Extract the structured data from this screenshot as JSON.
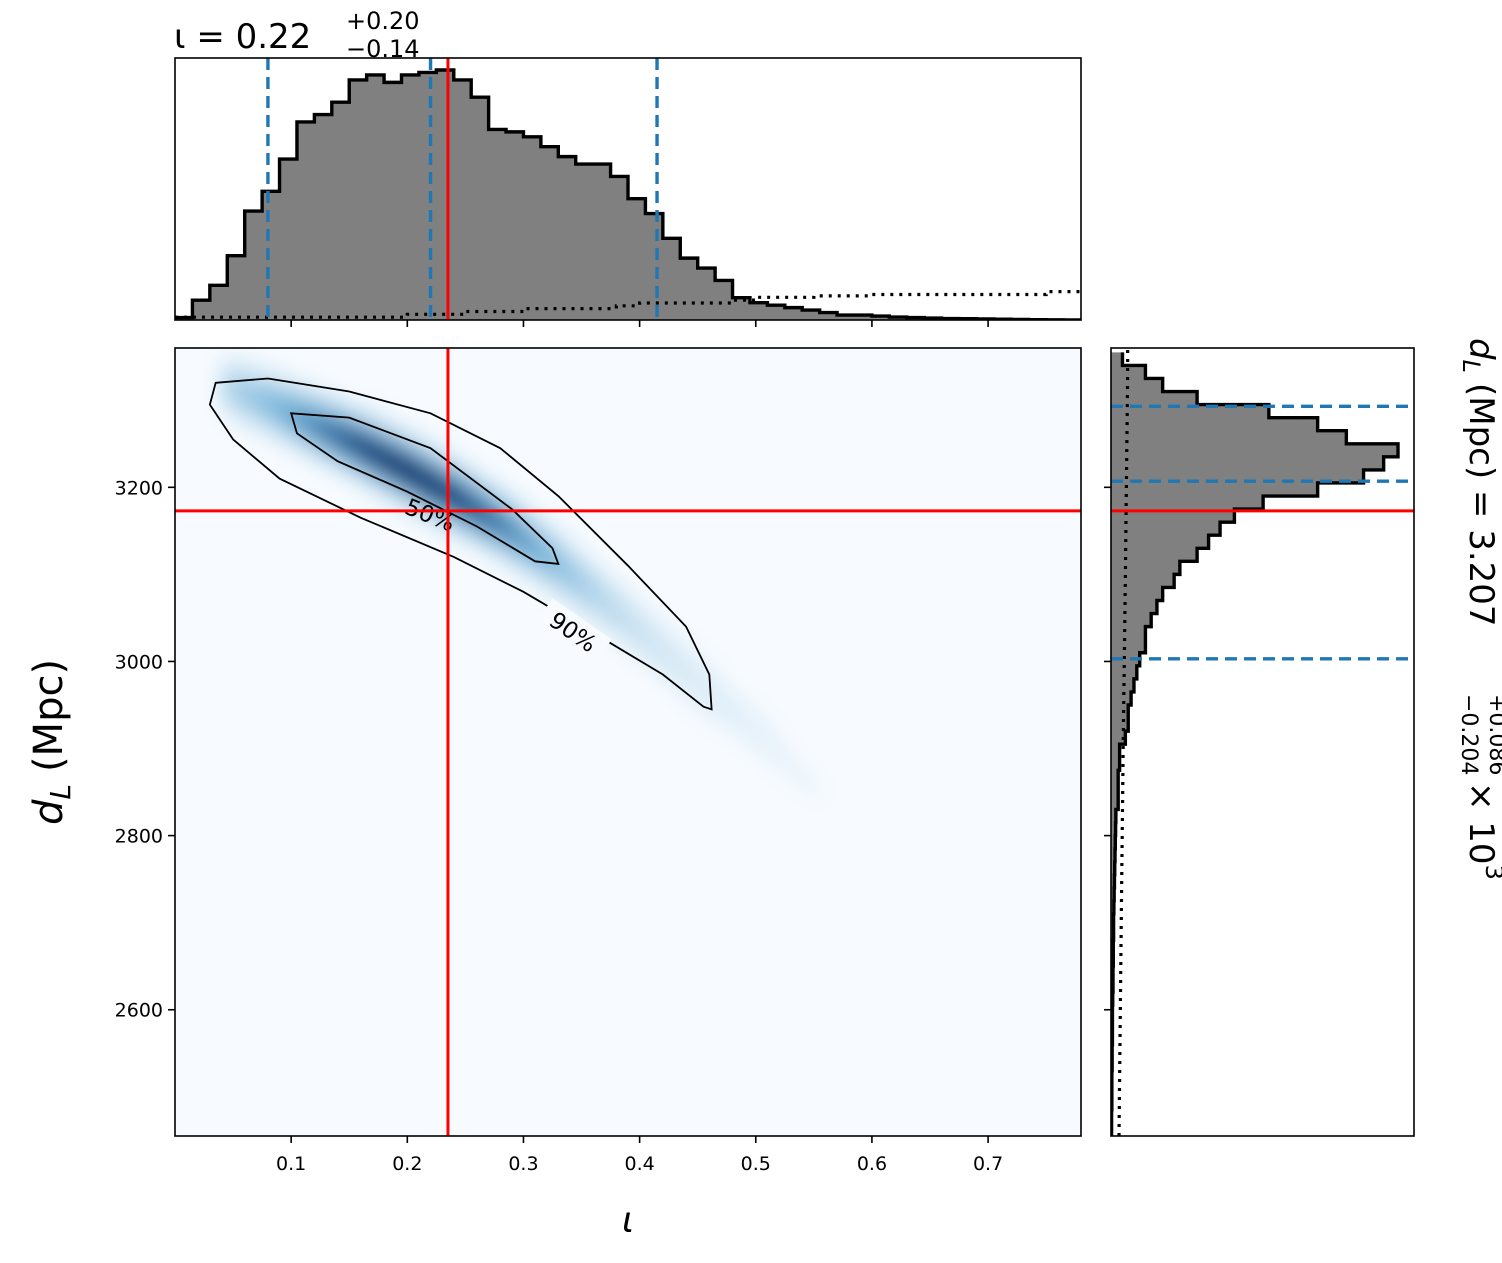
{
  "chart_data": {
    "type": "corner",
    "parameters": [
      {
        "key": "iota",
        "symbol": "ι",
        "label": "ι"
      },
      {
        "key": "dL",
        "symbol": "d",
        "subscript": "L",
        "unit": "(Mpc)",
        "label": "d_L (Mpc)"
      }
    ],
    "titles": {
      "iota": {
        "prefix": "ι = ",
        "median": "0.22",
        "plus": "+0.20",
        "minus": "−0.14"
      },
      "dL": {
        "prefix": "(Mpc) = ",
        "median": "3.207",
        "plus": "+0.086",
        "minus": "−0.204",
        "factor": "× 10",
        "exponent": "3"
      }
    },
    "axes": {
      "iota": {
        "range": [
          0.0,
          0.78
        ],
        "ticks": [
          0.1,
          0.2,
          0.3,
          0.4,
          0.5,
          0.6,
          0.7
        ],
        "tick_labels": [
          "0.1",
          "0.2",
          "0.3",
          "0.4",
          "0.5",
          "0.6",
          "0.7"
        ]
      },
      "dL": {
        "range": [
          2455,
          3360
        ],
        "ticks": [
          2600,
          2800,
          3000,
          3200
        ],
        "tick_labels": [
          "2600",
          "2800",
          "3000",
          "3200"
        ]
      }
    },
    "injected": {
      "iota": 0.235,
      "dL": 3173
    },
    "quantiles": {
      "iota": [
        0.08,
        0.22,
        0.415
      ],
      "dL": [
        3003,
        3207,
        3293
      ]
    },
    "histogram_iota": {
      "bin_edges": [
        0.0,
        0.015,
        0.03,
        0.045,
        0.06,
        0.075,
        0.09,
        0.105,
        0.12,
        0.135,
        0.15,
        0.165,
        0.18,
        0.195,
        0.21,
        0.225,
        0.24,
        0.255,
        0.27,
        0.285,
        0.3,
        0.315,
        0.33,
        0.345,
        0.36,
        0.375,
        0.39,
        0.405,
        0.42,
        0.435,
        0.45,
        0.465,
        0.48,
        0.495,
        0.51,
        0.525,
        0.54,
        0.555,
        0.57,
        0.585,
        0.6,
        0.615,
        0.63,
        0.645,
        0.66,
        0.675,
        0.69,
        0.705,
        0.72,
        0.735,
        0.75,
        0.765,
        0.78
      ],
      "values": [
        1,
        8,
        14,
        26,
        44,
        52,
        65,
        80,
        83,
        88,
        97,
        99,
        96,
        99,
        100,
        101,
        97,
        90,
        77,
        76,
        74,
        70,
        66,
        63,
        63,
        58,
        49,
        43,
        33,
        25,
        21,
        16,
        9,
        7,
        6,
        5,
        4,
        3,
        2,
        2,
        1.6,
        1.2,
        1.0,
        0.8,
        0.6,
        0.5,
        0.4,
        0.3,
        0.2,
        0.1,
        0.05,
        0.02
      ],
      "prior_step_x": [
        0.0,
        0.2,
        0.25,
        0.3,
        0.38,
        0.4,
        0.48,
        0.5,
        0.55,
        0.6,
        0.7,
        0.75,
        0.78
      ],
      "prior_step_y": [
        1,
        2,
        3,
        4,
        5,
        6,
        7,
        8,
        8.5,
        9,
        9,
        10,
        11
      ]
    },
    "histogram_dL": {
      "bin_edges": [
        2455,
        2470,
        2485,
        2500,
        2515,
        2530,
        2545,
        2560,
        2575,
        2590,
        2605,
        2620,
        2635,
        2650,
        2665,
        2680,
        2695,
        2710,
        2725,
        2740,
        2755,
        2770,
        2785,
        2800,
        2815,
        2830,
        2845,
        2860,
        2875,
        2890,
        2905,
        2920,
        2935,
        2950,
        2965,
        2980,
        2995,
        3010,
        3025,
        3040,
        3055,
        3070,
        3085,
        3100,
        3115,
        3130,
        3145,
        3160,
        3175,
        3190,
        3205,
        3220,
        3235,
        3250,
        3265,
        3280,
        3295,
        3310,
        3325,
        3340,
        3355
      ],
      "values": [
        0.2,
        0.2,
        0.3,
        0.3,
        0.3,
        0.4,
        0.4,
        0.5,
        0.5,
        0.5,
        0.6,
        0.7,
        0.7,
        0.8,
        0.8,
        0.9,
        0.9,
        1,
        1.1,
        1.2,
        1.3,
        1.4,
        1.5,
        1.6,
        1.7,
        2.5,
        2.5,
        2.5,
        3,
        3,
        5,
        6,
        6,
        7,
        8,
        9,
        10,
        12,
        12,
        14,
        16,
        18,
        22,
        24,
        30,
        34,
        38,
        43,
        53,
        72,
        88,
        95,
        100,
        82,
        72,
        55,
        30,
        18,
        12,
        4
      ],
      "prior_step_y": [
        2455,
        2700,
        2900,
        3100,
        3330,
        3360
      ],
      "prior_step_x": [
        2.5,
        3.2,
        3.8,
        4.5,
        5.2,
        5.2
      ]
    },
    "density_2d": {
      "colormap": "Blues",
      "ridge": [
        [
          0.04,
          3312
        ],
        [
          0.08,
          3290
        ],
        [
          0.12,
          3265
        ],
        [
          0.16,
          3240
        ],
        [
          0.2,
          3212
        ],
        [
          0.24,
          3182
        ],
        [
          0.28,
          3150
        ],
        [
          0.32,
          3112
        ],
        [
          0.36,
          3070
        ],
        [
          0.4,
          3025
        ],
        [
          0.44,
          2978
        ],
        [
          0.5,
          2910
        ],
        [
          0.56,
          2830
        ],
        [
          0.62,
          2740
        ],
        [
          0.68,
          2640
        ]
      ]
    },
    "contours": [
      {
        "level": "50%",
        "label": "50%",
        "path": [
          [
            0.1,
            3285
          ],
          [
            0.15,
            3280
          ],
          [
            0.22,
            3245
          ],
          [
            0.29,
            3175
          ],
          [
            0.325,
            3130
          ],
          [
            0.33,
            3112
          ],
          [
            0.31,
            3115
          ],
          [
            0.26,
            3155
          ],
          [
            0.2,
            3195
          ],
          [
            0.14,
            3230
          ],
          [
            0.105,
            3262
          ],
          [
            0.1,
            3285
          ]
        ]
      },
      {
        "level": "90%",
        "label": "90%",
        "path": [
          [
            0.035,
            3320
          ],
          [
            0.08,
            3325
          ],
          [
            0.15,
            3310
          ],
          [
            0.22,
            3285
          ],
          [
            0.28,
            3245
          ],
          [
            0.33,
            3190
          ],
          [
            0.39,
            3110
          ],
          [
            0.44,
            3040
          ],
          [
            0.46,
            2985
          ],
          [
            0.462,
            2945
          ],
          [
            0.455,
            2948
          ],
          [
            0.42,
            2985
          ],
          [
            0.37,
            3025
          ],
          [
            0.3,
            3080
          ],
          [
            0.24,
            3120
          ],
          [
            0.16,
            3165
          ],
          [
            0.09,
            3210
          ],
          [
            0.05,
            3255
          ],
          [
            0.03,
            3295
          ],
          [
            0.035,
            3320
          ]
        ]
      }
    ]
  },
  "colors": {
    "hist_fill": "#808080",
    "hist_edge": "#000000",
    "quantile_line": "#1f77b4",
    "truth_line": "#ff0000",
    "density_low": "#f7fbff",
    "density_high": "#08306b"
  }
}
